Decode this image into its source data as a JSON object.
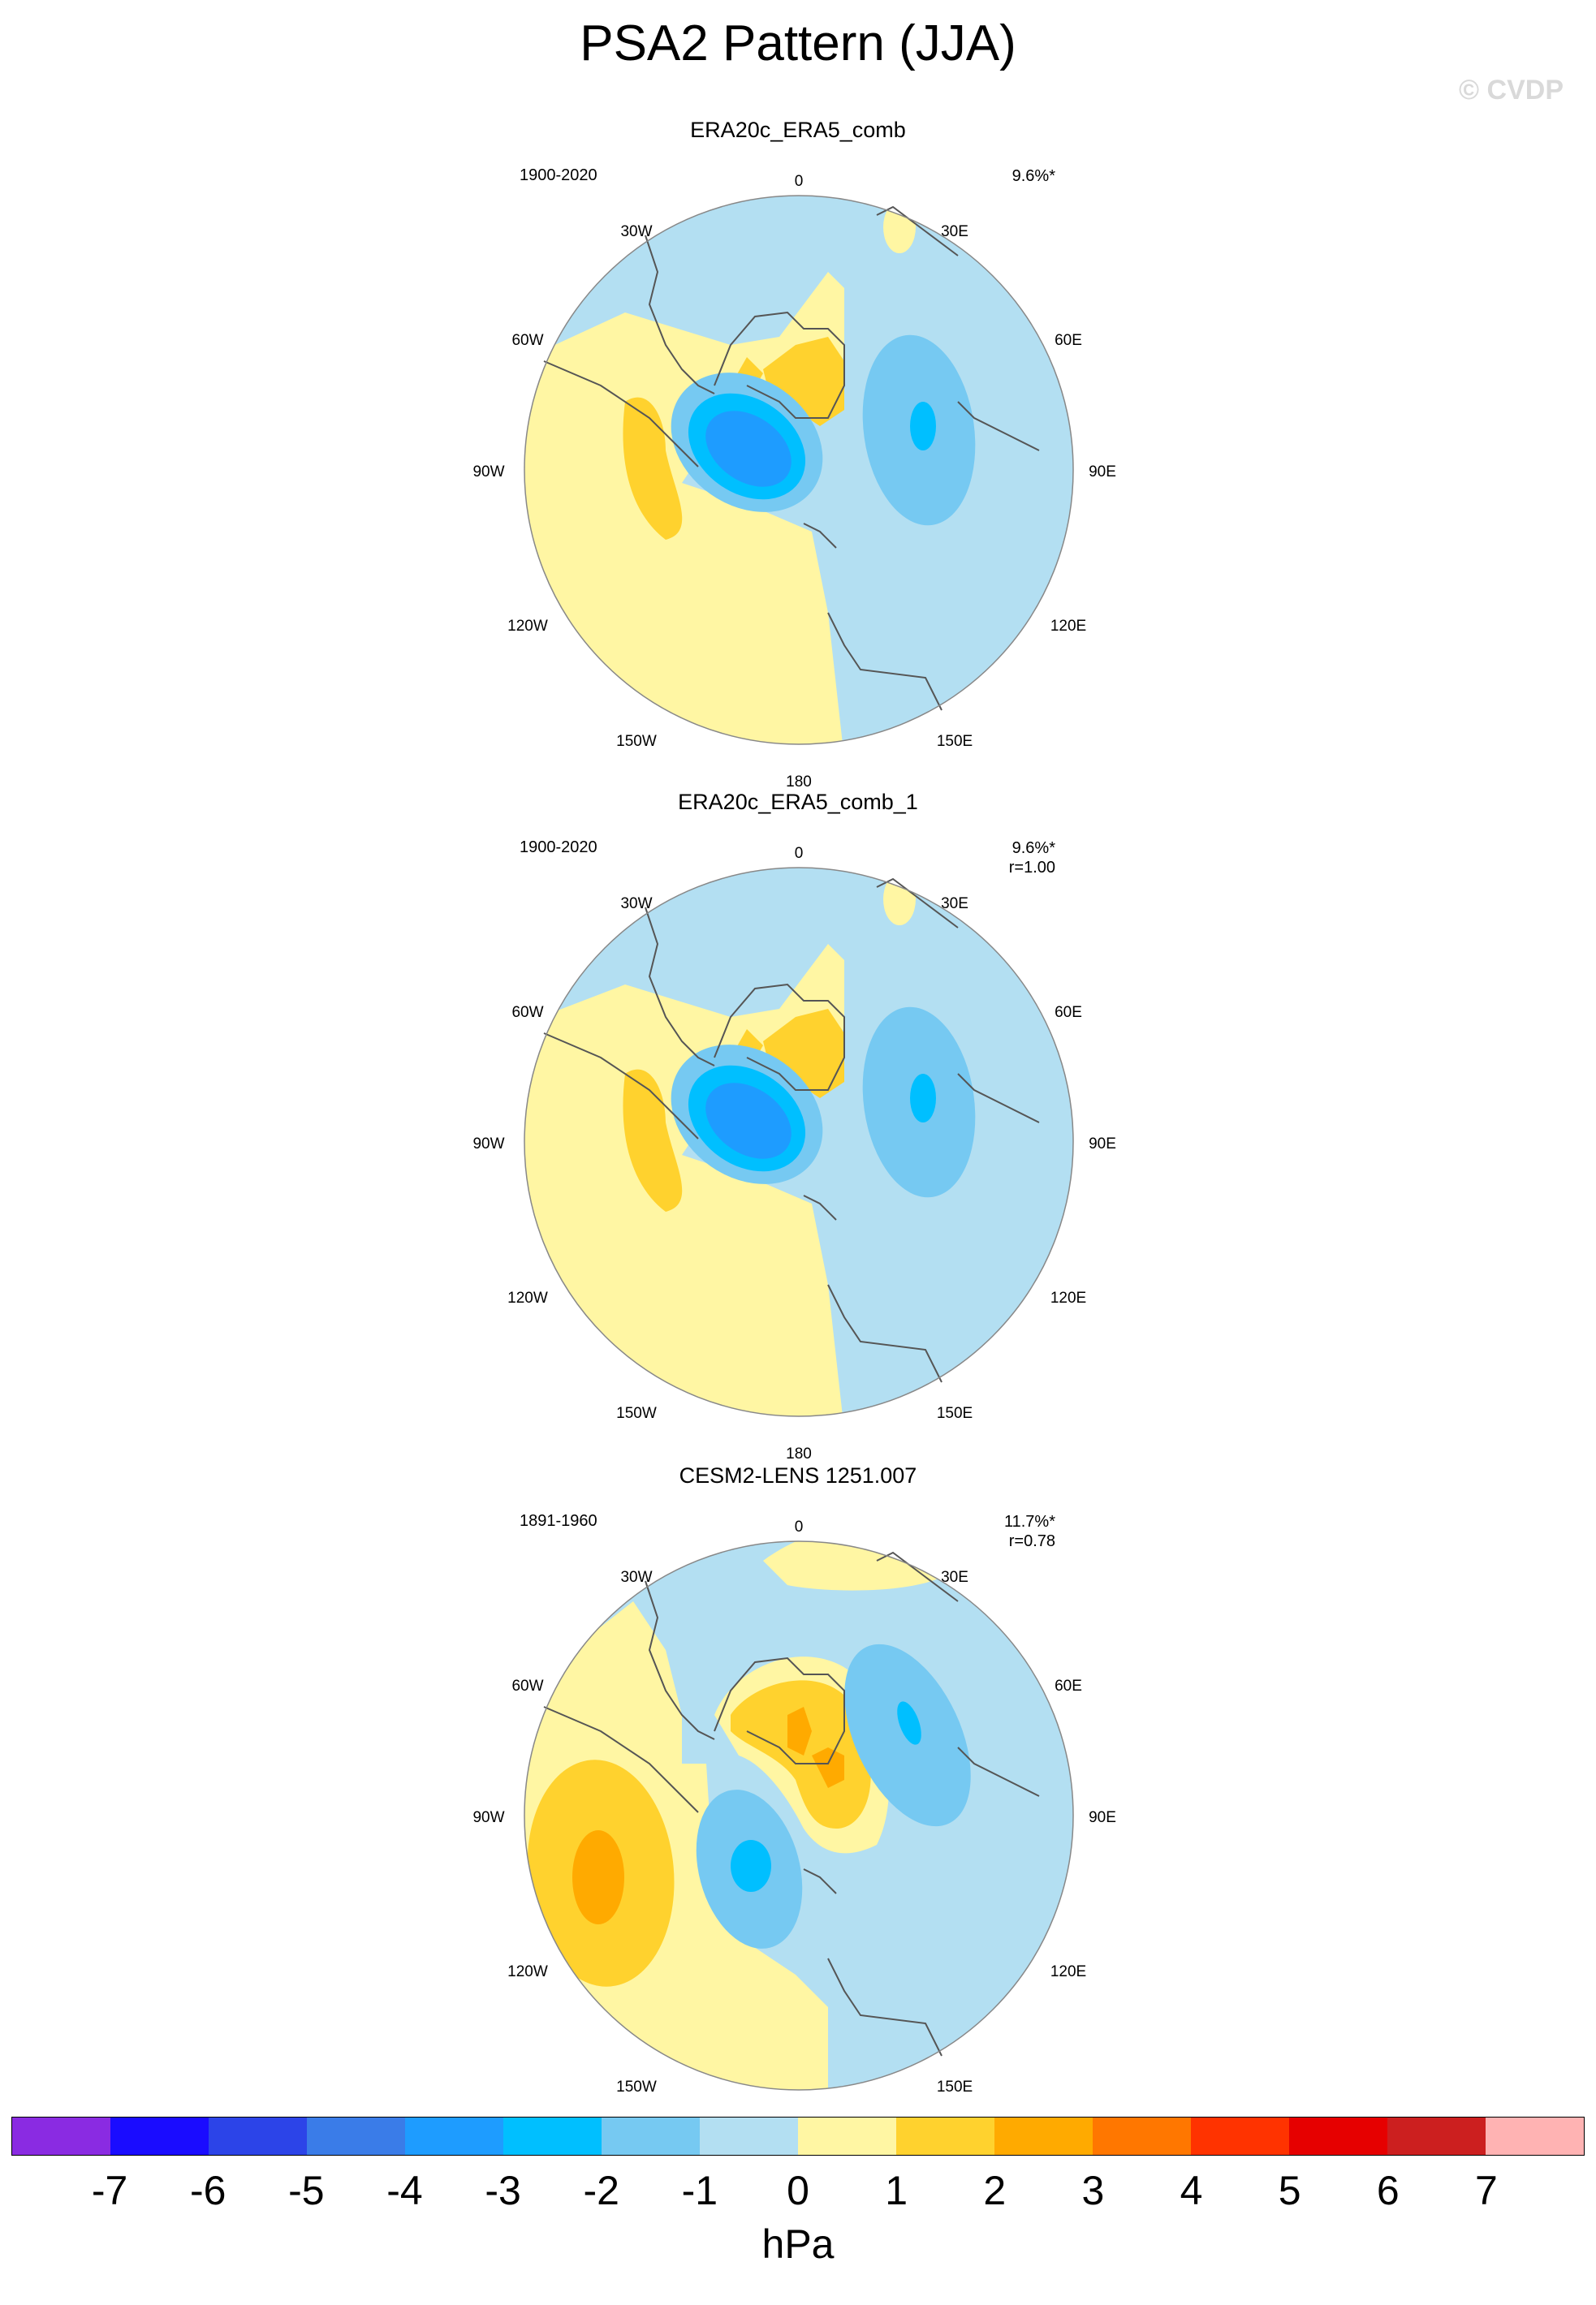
{
  "figure": {
    "title": "PSA2 Pattern (JJA)",
    "copyright": "© CVDP"
  },
  "lon_labels": [
    "0",
    "30E",
    "60E",
    "90E",
    "120E",
    "150E",
    "180",
    "150W",
    "120W",
    "90W",
    "60W",
    "30W"
  ],
  "panels": [
    {
      "title": "ERA20c_ERA5_comb",
      "period": "1900-2020",
      "pct": "9.6%*",
      "r": ""
    },
    {
      "title": "ERA20c_ERA5_comb_1",
      "period": "1900-2020",
      "pct": "9.6%*",
      "r": "r=1.00"
    },
    {
      "title": "CESM2-LENS 1251.007",
      "period": "1891-1960",
      "pct": "11.7%*",
      "r": "r=0.78"
    }
  ],
  "colorbar": {
    "colors": [
      "#8a2be2",
      "#1a0cff",
      "#2c44e8",
      "#3a7ce8",
      "#1e9cff",
      "#00bfff",
      "#76c9f2",
      "#b3dff2",
      "#fff6a3",
      "#ffd22e",
      "#ffaa00",
      "#ff7700",
      "#ff3300",
      "#e60000",
      "#cc1f1f",
      "#ffb3b3"
    ],
    "ticks": [
      "-7",
      "-6",
      "-5",
      "-4",
      "-3",
      "-2",
      "-1",
      "0",
      "1",
      "2",
      "3",
      "4",
      "5",
      "6",
      "7"
    ],
    "unit": "hPa"
  }
}
